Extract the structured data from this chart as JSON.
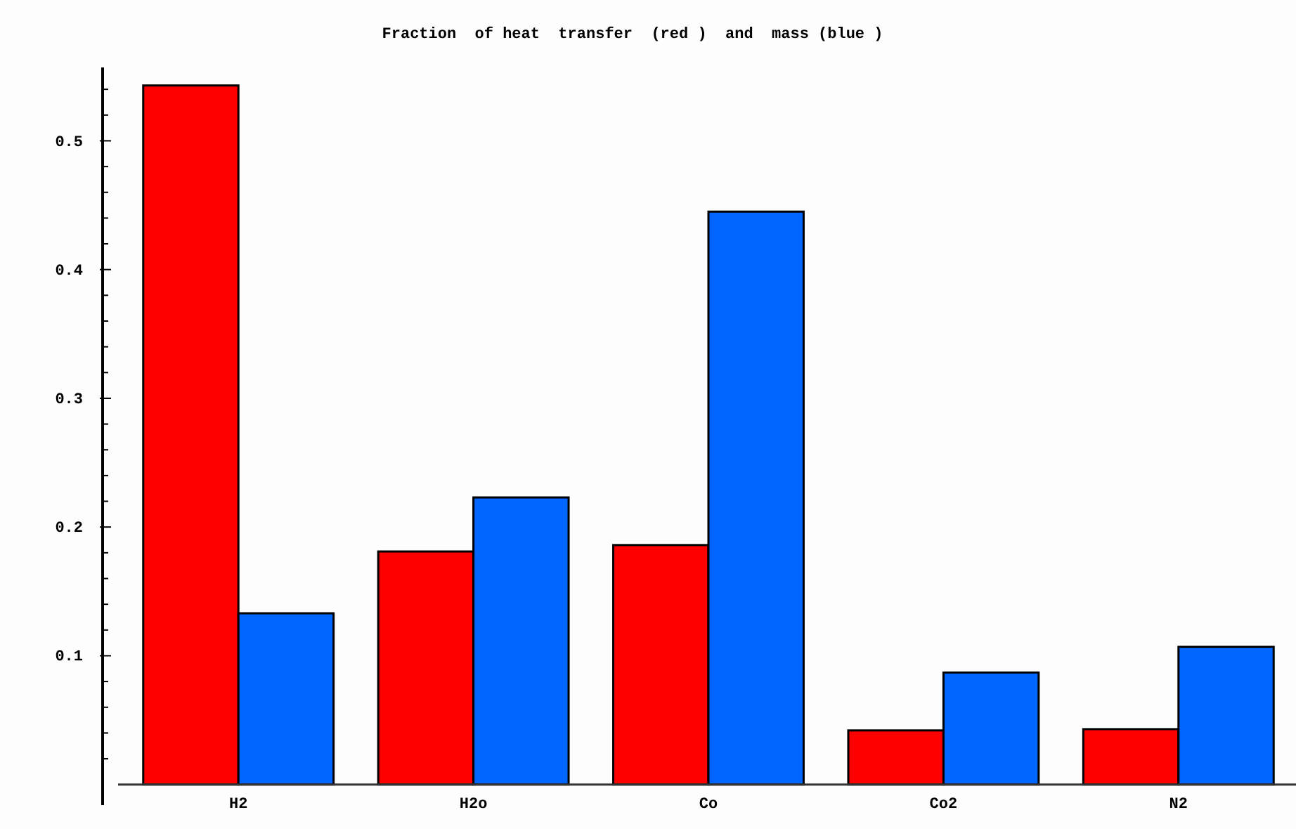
{
  "chart_data": {
    "type": "bar",
    "title": "Fraction  of heat  transfer  (red )  and  mass (blue )",
    "categories": [
      "H2",
      "H2o",
      "Co",
      "Co2",
      "N2"
    ],
    "series": [
      {
        "color": "#ff0000",
        "values": [
          0.543,
          0.181,
          0.186,
          0.042,
          0.043
        ]
      },
      {
        "color": "#0066ff",
        "values": [
          0.133,
          0.223,
          0.445,
          0.087,
          0.107
        ]
      }
    ],
    "ylim": [
      -0.016,
      0.557
    ],
    "yticks": [
      {
        "value": 0.02,
        "label": null
      },
      {
        "value": 0.04,
        "label": null
      },
      {
        "value": 0.06,
        "label": null
      },
      {
        "value": 0.08,
        "label": null
      },
      0.1,
      {
        "value": 0.12,
        "label": null
      },
      {
        "value": 0.14,
        "label": null
      },
      {
        "value": 0.16,
        "label": null
      },
      {
        "value": 0.18,
        "label": null
      },
      0.2,
      {
        "value": 0.22,
        "label": null
      },
      {
        "value": 0.24,
        "label": null
      },
      {
        "value": 0.26,
        "label": null
      },
      {
        "value": 0.28,
        "label": null
      },
      0.3,
      {
        "value": 0.32,
        "label": null
      },
      {
        "value": 0.34,
        "label": null
      },
      {
        "value": 0.36,
        "label": null
      },
      {
        "value": 0.38,
        "label": null
      },
      0.4,
      {
        "value": 0.42,
        "label": null
      },
      {
        "value": 0.44,
        "label": null
      },
      {
        "value": 0.46,
        "label": null
      },
      {
        "value": 0.48,
        "label": null
      },
      0.5,
      {
        "value": 0.52,
        "label": null
      },
      {
        "value": 0.54,
        "label": null
      }
    ],
    "grid": false
  }
}
